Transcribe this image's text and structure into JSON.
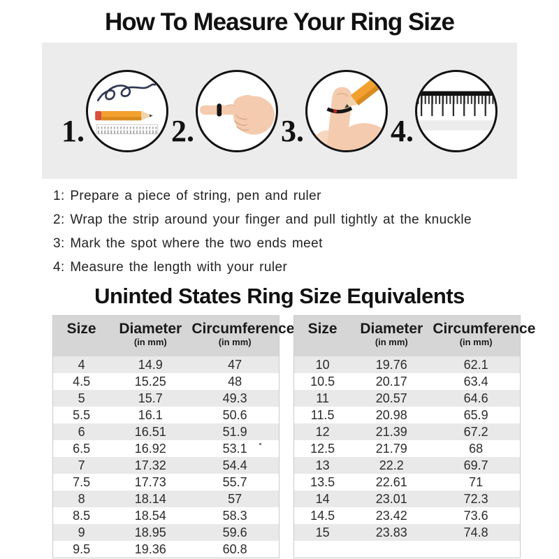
{
  "page": {
    "title": "How To Measure Your Ring Size",
    "section_title": "Uninted States Ring Size Equivalents"
  },
  "steps_banner": {
    "steps": [
      {
        "number": "1.",
        "icon": "string-pencil-and-ruler"
      },
      {
        "number": "2.",
        "icon": "hand-pointing-with-ring"
      },
      {
        "number": "3.",
        "icon": "marking-string-on-finger"
      },
      {
        "number": "4.",
        "icon": "ruler-measuring"
      }
    ]
  },
  "instructions": [
    "1: Prepare a piece of string, pen and ruler",
    "2: Wrap the strip around your finger and pull tightly at the knuckle",
    "3: Mark the spot where the two ends meet",
    "4: Measure the length with your ruler"
  ],
  "size_chart": {
    "columns": [
      {
        "label": "Size",
        "unit": ""
      },
      {
        "label": "Diameter",
        "unit": "(in mm)"
      },
      {
        "label": "Circumference",
        "unit": "(in mm)"
      }
    ],
    "left_table_rows": [
      [
        "4",
        "14.9",
        "47"
      ],
      [
        "4.5",
        "15.25",
        "48"
      ],
      [
        "5",
        "15.7",
        "49.3"
      ],
      [
        "5.5",
        "16.1",
        "50.6"
      ],
      [
        "6",
        "16.51",
        "51.9"
      ],
      [
        "6.5",
        "16.92",
        "53.1"
      ],
      [
        "7",
        "17.32",
        "54.4"
      ],
      [
        "7.5",
        "17.73",
        "55.7"
      ],
      [
        "8",
        "18.14",
        "57"
      ],
      [
        "8.5",
        "18.54",
        "58.3"
      ],
      [
        "9",
        "18.95",
        "59.6"
      ],
      [
        "9.5",
        "19.36",
        "60.8"
      ]
    ],
    "right_table_rows": [
      [
        "10",
        "19.76",
        "62.1"
      ],
      [
        "10.5",
        "20.17",
        "63.4"
      ],
      [
        "11",
        "20.57",
        "64.6"
      ],
      [
        "11.5",
        "20.98",
        "65.9"
      ],
      [
        "12",
        "21.39",
        "67.2"
      ],
      [
        "12.5",
        "21.79",
        "68"
      ],
      [
        "13",
        "22.2",
        "69.7"
      ],
      [
        "13.5",
        "22.61",
        "71"
      ],
      [
        "14",
        "23.01",
        "72.3"
      ],
      [
        "14.5",
        "23.42",
        "73.6"
      ],
      [
        "15",
        "23.83",
        "74.8"
      ],
      [
        "",
        "",
        ""
      ]
    ]
  },
  "colors": {
    "banner_bg": "#ececec",
    "table_header_bg": "#d6d6d6",
    "table_stripe_bg": "#e9e9e9",
    "text": "#1c1c1c",
    "pencil_orange": "#f2a12e",
    "eraser_red": "#d94f3d",
    "string_navy": "#2e3650",
    "skin": "#f4cbae"
  }
}
